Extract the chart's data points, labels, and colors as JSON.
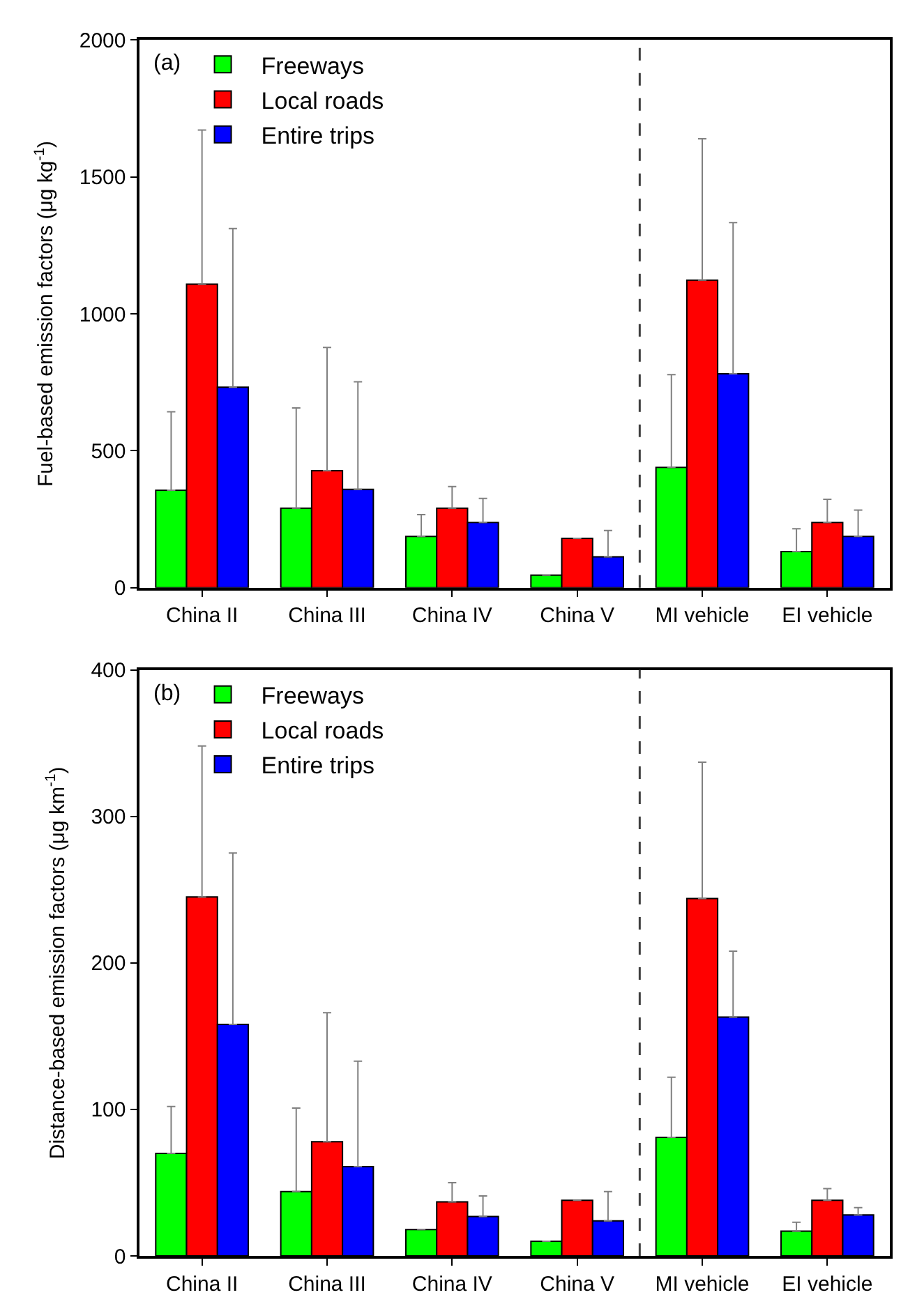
{
  "chart_data": [
    {
      "type": "bar",
      "title": "(a)",
      "ylabel": "Fuel-based emission factors (μg kg$^{-1}$)",
      "categories": [
        "China II",
        "China III",
        "China IV",
        "China V",
        "MI vehicle",
        "EI vehicle"
      ],
      "ylim": [
        0,
        2000
      ],
      "yticks": [
        0,
        500,
        1000,
        1500,
        2000
      ],
      "legend": "top left",
      "series": [
        {
          "name": "Freeways",
          "color": "#00ff00",
          "values": [
            356,
            290,
            187,
            46,
            439,
            132
          ],
          "errors": [
            [
              356,
              642
            ],
            [
              290,
              656
            ],
            [
              187,
              267
            ],
            null,
            [
              439,
              778
            ],
            [
              132,
              215
            ]
          ]
        },
        {
          "name": "Local roads",
          "color": "#ff0000",
          "values": [
            1108,
            427,
            290,
            180,
            1123,
            238
          ],
          "errors": [
            [
              1108,
              1671
            ],
            [
              427,
              877
            ],
            [
              290,
              369
            ],
            null,
            [
              1123,
              1639
            ],
            [
              238,
              323
            ]
          ]
        },
        {
          "name": "Entire trips",
          "color": "#0000ff",
          "values": [
            732,
            359,
            238,
            113,
            781,
            187
          ],
          "errors": [
            [
              732,
              1311
            ],
            [
              359,
              752
            ],
            [
              238,
              326
            ],
            [
              113,
              209
            ],
            [
              781,
              1333
            ],
            [
              187,
              283
            ]
          ]
        }
      ]
    },
    {
      "type": "bar",
      "title": "(b)",
      "ylabel": "Distance-based emission factors (μg km$^{-1}$)",
      "categories": [
        "China II",
        "China III",
        "China IV",
        "China V",
        "MI vehicle",
        "EI vehicle"
      ],
      "ylim": [
        0,
        400
      ],
      "yticks": [
        0,
        100,
        200,
        300,
        400
      ],
      "legend": "top left",
      "series": [
        {
          "name": "Freeways",
          "color": "#00ff00",
          "values": [
            70,
            44,
            18,
            10,
            81,
            17
          ],
          "errors": [
            [
              70,
              102
            ],
            [
              44,
              101
            ],
            null,
            null,
            [
              81,
              122
            ],
            [
              17,
              23
            ]
          ]
        },
        {
          "name": "Local roads",
          "color": "#ff0000",
          "values": [
            245,
            78,
            37,
            38,
            244,
            38
          ],
          "errors": [
            [
              245,
              348
            ],
            [
              78,
              166
            ],
            [
              37,
              50
            ],
            null,
            [
              244,
              337
            ],
            [
              38,
              46
            ]
          ]
        },
        {
          "name": "Entire trips",
          "color": "#0000ff",
          "values": [
            158,
            61,
            27,
            24,
            163,
            28
          ],
          "errors": [
            [
              158,
              275
            ],
            [
              61,
              133
            ],
            [
              27,
              41
            ],
            [
              24,
              44
            ],
            [
              163,
              208
            ],
            [
              28,
              33
            ]
          ]
        }
      ]
    }
  ]
}
